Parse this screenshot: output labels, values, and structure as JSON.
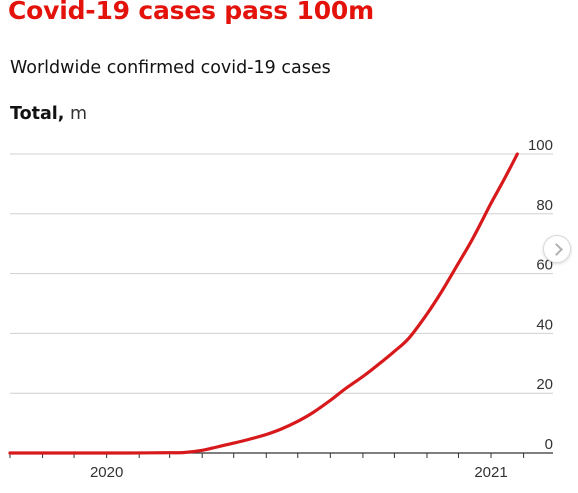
{
  "header": {
    "title": "Covid-19 cases pass 100m",
    "subtitle": "Worldwide confirmed covid-19 cases",
    "unit_strong": "Total,",
    "unit_light": " m"
  },
  "colors": {
    "accent": "#e3120b",
    "line": "#d7191c",
    "grid": "#d0d0d0",
    "axis": "#333333"
  },
  "controls": {
    "next_icon": "chevron-right-icon"
  },
  "chart_data": {
    "type": "line",
    "title": "Covid-19 cases pass 100m",
    "subtitle": "Worldwide confirmed covid-19 cases",
    "ylabel": "Total, m",
    "xlabel": "",
    "ylim": [
      0,
      100
    ],
    "xlim": [
      "2019-10-01",
      "2021-03-01"
    ],
    "yticks": [
      0,
      20,
      40,
      60,
      80,
      100
    ],
    "ytick_labels": [
      "0",
      "20",
      "40",
      "60",
      "80",
      "100"
    ],
    "xticks": [
      "2019-10-01",
      "2019-11-01",
      "2019-12-01",
      "2020-01-01",
      "2020-02-01",
      "2020-03-01",
      "2020-04-01",
      "2020-05-01",
      "2020-06-01",
      "2020-07-01",
      "2020-08-01",
      "2020-09-01",
      "2020-10-01",
      "2020-11-01",
      "2020-12-01",
      "2021-01-01",
      "2021-02-01"
    ],
    "x_labels": [
      {
        "date": "2020-01-01",
        "label": "2020"
      },
      {
        "date": "2021-01-01",
        "label": "2021"
      }
    ],
    "grid": true,
    "legend": "none",
    "series": [
      {
        "color": "#d7191c",
        "points": [
          [
            "2019-12-31",
            0.0
          ],
          [
            "2020-01-22",
            0.0006
          ],
          [
            "2020-02-15",
            0.07
          ],
          [
            "2020-03-01",
            0.09
          ],
          [
            "2020-03-15",
            0.17
          ],
          [
            "2020-04-01",
            0.9
          ],
          [
            "2020-04-15",
            2.0
          ],
          [
            "2020-05-01",
            3.3
          ],
          [
            "2020-05-15",
            4.5
          ],
          [
            "2020-06-01",
            6.2
          ],
          [
            "2020-06-15",
            8.0
          ],
          [
            "2020-07-01",
            10.6
          ],
          [
            "2020-07-15",
            13.4
          ],
          [
            "2020-08-01",
            17.6
          ],
          [
            "2020-08-15",
            21.4
          ],
          [
            "2020-09-01",
            25.6
          ],
          [
            "2020-09-15",
            29.4
          ],
          [
            "2020-10-01",
            34.0
          ],
          [
            "2020-10-15",
            38.5
          ],
          [
            "2020-11-01",
            46.5
          ],
          [
            "2020-11-15",
            54.0
          ],
          [
            "2020-12-01",
            63.5
          ],
          [
            "2020-12-15",
            72.0
          ],
          [
            "2021-01-01",
            83.5
          ],
          [
            "2021-01-15",
            92.5
          ],
          [
            "2021-01-26",
            100.0
          ]
        ]
      }
    ]
  }
}
